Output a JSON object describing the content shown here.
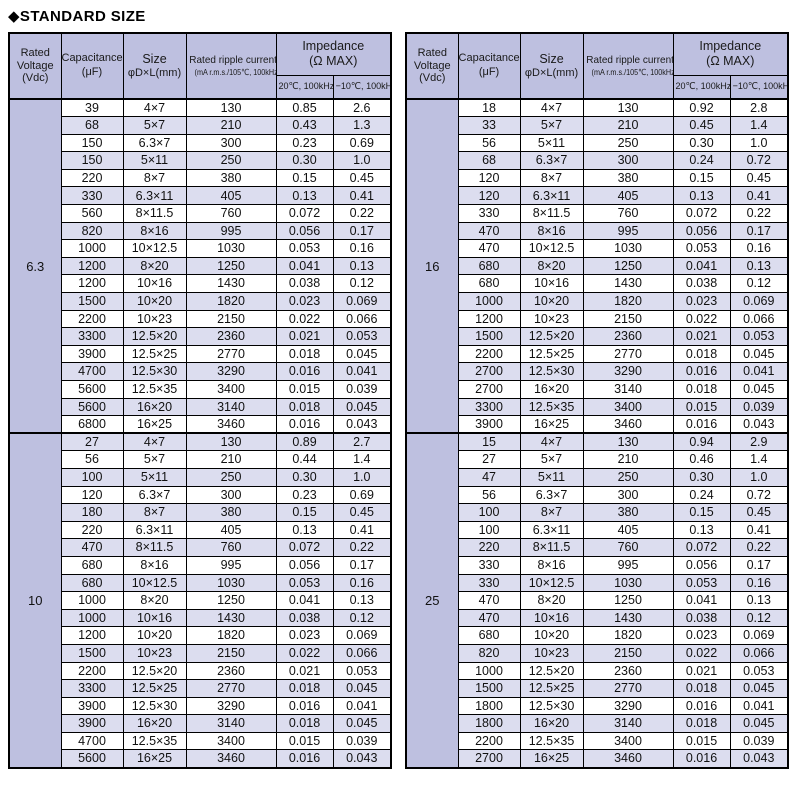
{
  "title": "◆STANDARD SIZE",
  "colors": {
    "header_bg": "#bec0e0",
    "stripe_bg": "#dcddef",
    "row_bg": "#ffffff",
    "border": "#000000",
    "text": "#111111"
  },
  "header": {
    "rated_voltage": "Rated\nVoltage\n(Vdc)",
    "capacitance": "Capacitance\n(μF)",
    "size_line1": "Size",
    "size_line2": "φD×L(mm)",
    "ripple_line1": "Rated ripple current",
    "ripple_line2": "(mA r.m.s./105℃, 100kHz)",
    "impedance": "Impedance\n(Ω MAX)",
    "imp_sub_20": "20℃, 100kHz",
    "imp_sub_neg10": "−10℃, 100kHz"
  },
  "columns": [
    "Rated Voltage (Vdc)",
    "Capacitance (μF)",
    "Size φD×L(mm)",
    "Rated ripple current (mA r.m.s./105℃, 100kHz)",
    "Impedance 20℃, 100kHz (Ω MAX)",
    "Impedance −10℃, 100kHz (Ω MAX)"
  ],
  "tables": [
    {
      "sections": [
        {
          "voltage": "6.3",
          "rows": [
            [
              "39",
              "4×7",
              "130",
              "0.85",
              "2.6"
            ],
            [
              "68",
              "5×7",
              "210",
              "0.43",
              "1.3"
            ],
            [
              "150",
              "6.3×7",
              "300",
              "0.23",
              "0.69"
            ],
            [
              "150",
              "5×11",
              "250",
              "0.30",
              "1.0"
            ],
            [
              "220",
              "8×7",
              "380",
              "0.15",
              "0.45"
            ],
            [
              "330",
              "6.3×11",
              "405",
              "0.13",
              "0.41"
            ],
            [
              "560",
              "8×11.5",
              "760",
              "0.072",
              "0.22"
            ],
            [
              "820",
              "8×16",
              "995",
              "0.056",
              "0.17"
            ],
            [
              "1000",
              "10×12.5",
              "1030",
              "0.053",
              "0.16"
            ],
            [
              "1200",
              "8×20",
              "1250",
              "0.041",
              "0.13"
            ],
            [
              "1200",
              "10×16",
              "1430",
              "0.038",
              "0.12"
            ],
            [
              "1500",
              "10×20",
              "1820",
              "0.023",
              "0.069"
            ],
            [
              "2200",
              "10×23",
              "2150",
              "0.022",
              "0.066"
            ],
            [
              "3300",
              "12.5×20",
              "2360",
              "0.021",
              "0.053"
            ],
            [
              "3900",
              "12.5×25",
              "2770",
              "0.018",
              "0.045"
            ],
            [
              "4700",
              "12.5×30",
              "3290",
              "0.016",
              "0.041"
            ],
            [
              "5600",
              "12.5×35",
              "3400",
              "0.015",
              "0.039"
            ],
            [
              "5600",
              "16×20",
              "3140",
              "0.018",
              "0.045"
            ],
            [
              "6800",
              "16×25",
              "3460",
              "0.016",
              "0.043"
            ]
          ]
        },
        {
          "voltage": "10",
          "rows": [
            [
              "27",
              "4×7",
              "130",
              "0.89",
              "2.7"
            ],
            [
              "56",
              "5×7",
              "210",
              "0.44",
              "1.4"
            ],
            [
              "100",
              "5×11",
              "250",
              "0.30",
              "1.0"
            ],
            [
              "120",
              "6.3×7",
              "300",
              "0.23",
              "0.69"
            ],
            [
              "180",
              "8×7",
              "380",
              "0.15",
              "0.45"
            ],
            [
              "220",
              "6.3×11",
              "405",
              "0.13",
              "0.41"
            ],
            [
              "470",
              "8×11.5",
              "760",
              "0.072",
              "0.22"
            ],
            [
              "680",
              "8×16",
              "995",
              "0.056",
              "0.17"
            ],
            [
              "680",
              "10×12.5",
              "1030",
              "0.053",
              "0.16"
            ],
            [
              "1000",
              "8×20",
              "1250",
              "0.041",
              "0.13"
            ],
            [
              "1000",
              "10×16",
              "1430",
              "0.038",
              "0.12"
            ],
            [
              "1200",
              "10×20",
              "1820",
              "0.023",
              "0.069"
            ],
            [
              "1500",
              "10×23",
              "2150",
              "0.022",
              "0.066"
            ],
            [
              "2200",
              "12.5×20",
              "2360",
              "0.021",
              "0.053"
            ],
            [
              "3300",
              "12.5×25",
              "2770",
              "0.018",
              "0.045"
            ],
            [
              "3900",
              "12.5×30",
              "3290",
              "0.016",
              "0.041"
            ],
            [
              "3900",
              "16×20",
              "3140",
              "0.018",
              "0.045"
            ],
            [
              "4700",
              "12.5×35",
              "3400",
              "0.015",
              "0.039"
            ],
            [
              "5600",
              "16×25",
              "3460",
              "0.016",
              "0.043"
            ]
          ]
        }
      ]
    },
    {
      "sections": [
        {
          "voltage": "16",
          "rows": [
            [
              "18",
              "4×7",
              "130",
              "0.92",
              "2.8"
            ],
            [
              "33",
              "5×7",
              "210",
              "0.45",
              "1.4"
            ],
            [
              "56",
              "5×11",
              "250",
              "0.30",
              "1.0"
            ],
            [
              "68",
              "6.3×7",
              "300",
              "0.24",
              "0.72"
            ],
            [
              "120",
              "8×7",
              "380",
              "0.15",
              "0.45"
            ],
            [
              "120",
              "6.3×11",
              "405",
              "0.13",
              "0.41"
            ],
            [
              "330",
              "8×11.5",
              "760",
              "0.072",
              "0.22"
            ],
            [
              "470",
              "8×16",
              "995",
              "0.056",
              "0.17"
            ],
            [
              "470",
              "10×12.5",
              "1030",
              "0.053",
              "0.16"
            ],
            [
              "680",
              "8×20",
              "1250",
              "0.041",
              "0.13"
            ],
            [
              "680",
              "10×16",
              "1430",
              "0.038",
              "0.12"
            ],
            [
              "1000",
              "10×20",
              "1820",
              "0.023",
              "0.069"
            ],
            [
              "1200",
              "10×23",
              "2150",
              "0.022",
              "0.066"
            ],
            [
              "1500",
              "12.5×20",
              "2360",
              "0.021",
              "0.053"
            ],
            [
              "2200",
              "12.5×25",
              "2770",
              "0.018",
              "0.045"
            ],
            [
              "2700",
              "12.5×30",
              "3290",
              "0.016",
              "0.041"
            ],
            [
              "2700",
              "16×20",
              "3140",
              "0.018",
              "0.045"
            ],
            [
              "3300",
              "12.5×35",
              "3400",
              "0.015",
              "0.039"
            ],
            [
              "3900",
              "16×25",
              "3460",
              "0.016",
              "0.043"
            ]
          ]
        },
        {
          "voltage": "25",
          "rows": [
            [
              "15",
              "4×7",
              "130",
              "0.94",
              "2.9"
            ],
            [
              "27",
              "5×7",
              "210",
              "0.46",
              "1.4"
            ],
            [
              "47",
              "5×11",
              "250",
              "0.30",
              "1.0"
            ],
            [
              "56",
              "6.3×7",
              "300",
              "0.24",
              "0.72"
            ],
            [
              "100",
              "8×7",
              "380",
              "0.15",
              "0.45"
            ],
            [
              "100",
              "6.3×11",
              "405",
              "0.13",
              "0.41"
            ],
            [
              "220",
              "8×11.5",
              "760",
              "0.072",
              "0.22"
            ],
            [
              "330",
              "8×16",
              "995",
              "0.056",
              "0.17"
            ],
            [
              "330",
              "10×12.5",
              "1030",
              "0.053",
              "0.16"
            ],
            [
              "470",
              "8×20",
              "1250",
              "0.041",
              "0.13"
            ],
            [
              "470",
              "10×16",
              "1430",
              "0.038",
              "0.12"
            ],
            [
              "680",
              "10×20",
              "1820",
              "0.023",
              "0.069"
            ],
            [
              "820",
              "10×23",
              "2150",
              "0.022",
              "0.066"
            ],
            [
              "1000",
              "12.5×20",
              "2360",
              "0.021",
              "0.053"
            ],
            [
              "1500",
              "12.5×25",
              "2770",
              "0.018",
              "0.045"
            ],
            [
              "1800",
              "12.5×30",
              "3290",
              "0.016",
              "0.041"
            ],
            [
              "1800",
              "16×20",
              "3140",
              "0.018",
              "0.045"
            ],
            [
              "2200",
              "12.5×35",
              "3400",
              "0.015",
              "0.039"
            ],
            [
              "2700",
              "16×25",
              "3460",
              "0.016",
              "0.043"
            ]
          ]
        }
      ]
    }
  ]
}
